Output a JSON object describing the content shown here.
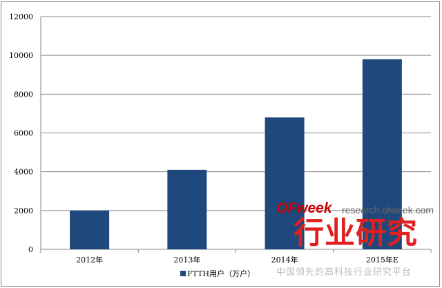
{
  "chart_data": {
    "type": "bar",
    "categories": [
      "2012年",
      "2013年",
      "2014年",
      "2015年E"
    ],
    "series": [
      {
        "name": "FTTH用户（万户）",
        "values": [
          2000,
          4100,
          6800,
          9800
        ],
        "color": "#1f497d"
      }
    ],
    "ylim": [
      0,
      12000
    ],
    "yticks": [
      0,
      2000,
      4000,
      6000,
      8000,
      10000,
      12000
    ],
    "grid": true,
    "legend": "bottom",
    "title": "",
    "xlabel": "",
    "ylabel": ""
  },
  "watermark": {
    "brand": "OFweek",
    "url": "research.ofweek.com",
    "title": "行业研究",
    "slogan": "中国领先的高科技行业研究平台"
  }
}
